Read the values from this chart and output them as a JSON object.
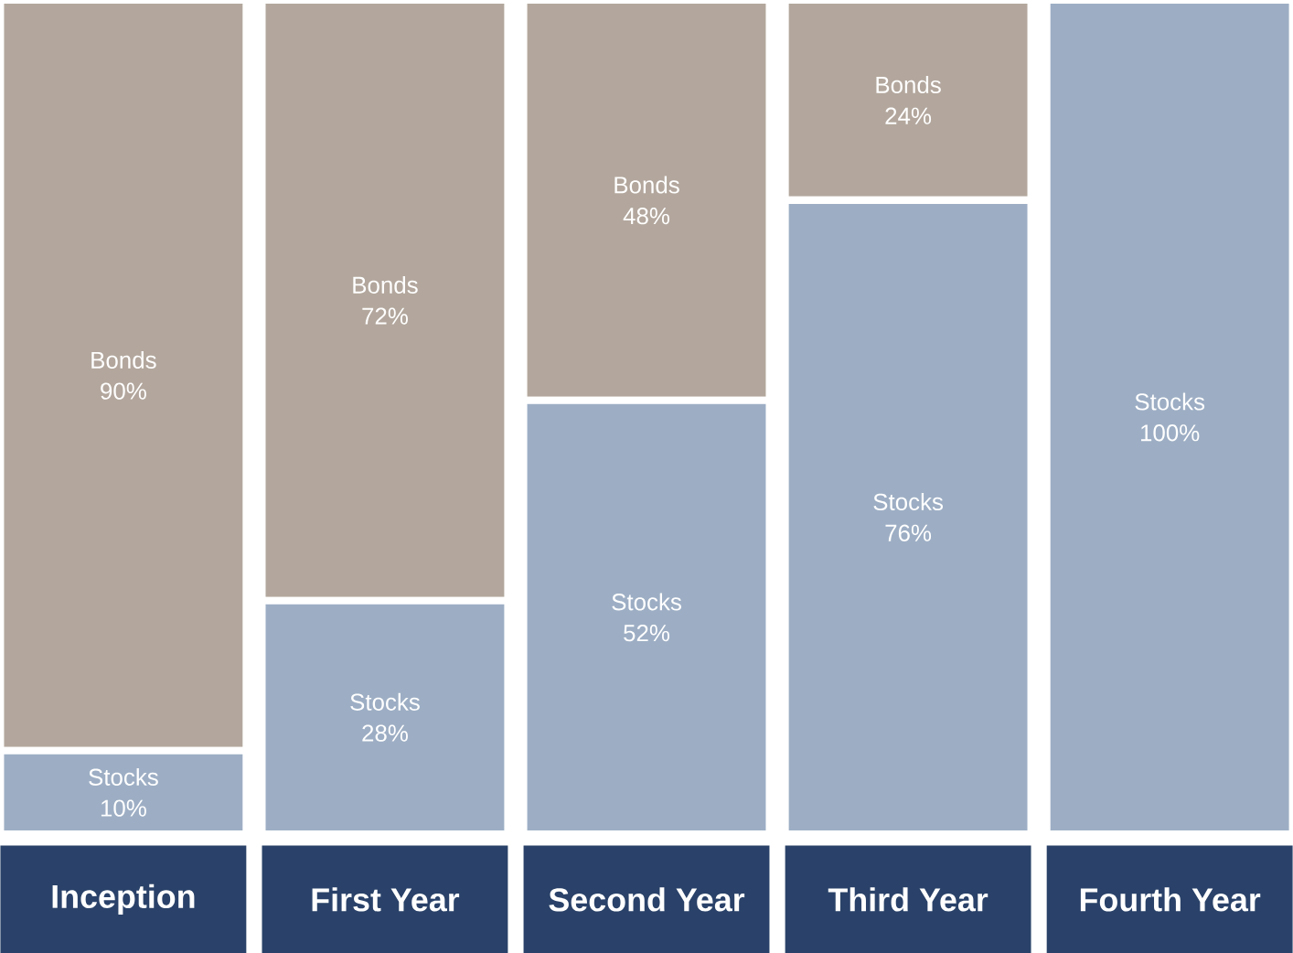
{
  "chart_data": {
    "type": "bar",
    "stacked": true,
    "categories": [
      "Inception",
      "First Year",
      "Second Year",
      "Third Year",
      "Fourth Year"
    ],
    "series": [
      {
        "name": "Stocks",
        "color": "#9daec4",
        "values": [
          10,
          28,
          52,
          76,
          100
        ],
        "value_labels": [
          "10%",
          "28%",
          "52%",
          "76%",
          "100%"
        ]
      },
      {
        "name": "Bonds",
        "color": "#b3a79d",
        "values": [
          90,
          72,
          48,
          24,
          0
        ],
        "value_labels": [
          "90%",
          "72%",
          "48%",
          "24%",
          null
        ]
      }
    ]
  }
}
